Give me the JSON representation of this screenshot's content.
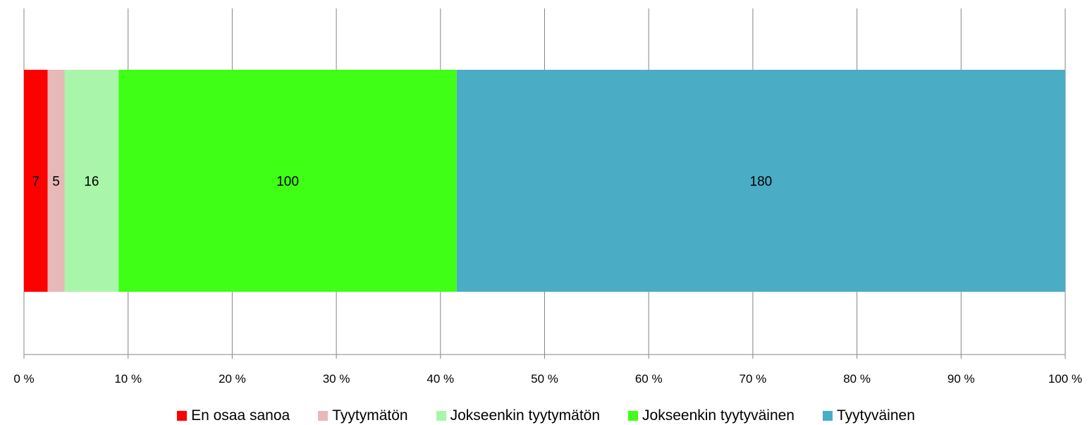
{
  "chart_data": {
    "type": "bar",
    "orientation": "horizontal",
    "stacked": "percent",
    "categories": [
      ""
    ],
    "series": [
      {
        "name": "En osaa sanoa",
        "values": [
          7
        ],
        "color": "#ff0000"
      },
      {
        "name": "Tyytymätön",
        "values": [
          5
        ],
        "color": "#e6b8b7"
      },
      {
        "name": "Jokseenkin tyytymätön",
        "values": [
          16
        ],
        "color": "#a9f5a9"
      },
      {
        "name": "Jokseenkin tyytyväinen",
        "values": [
          100
        ],
        "color": "#3fff17"
      },
      {
        "name": "Tyytyväinen",
        "values": [
          180
        ],
        "color": "#4bacc6"
      }
    ],
    "xticks": [
      "0 %",
      "10 %",
      "20 %",
      "30 %",
      "40 %",
      "50 %",
      "60 %",
      "70 %",
      "80 %",
      "90 %",
      "100 %"
    ],
    "xlim": [
      0,
      100
    ],
    "grid": true,
    "legend": "bottom"
  }
}
